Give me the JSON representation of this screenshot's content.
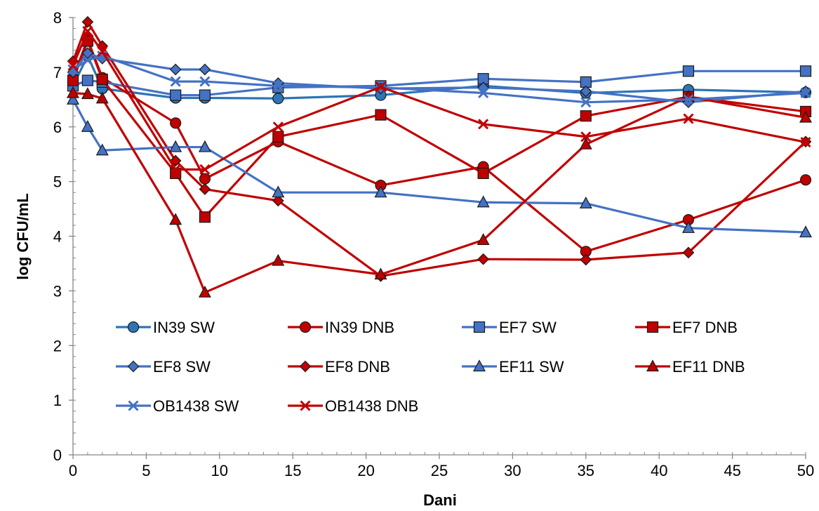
{
  "chart_data": {
    "type": "line",
    "title": "",
    "xlabel": "Dani",
    "ylabel": "log CFU/mL",
    "xlim": [
      0,
      50
    ],
    "ylim": [
      0,
      8
    ],
    "x_ticks": [
      0,
      5,
      10,
      15,
      20,
      25,
      30,
      35,
      40,
      45,
      50
    ],
    "y_ticks": [
      0,
      1,
      2,
      3,
      4,
      5,
      6,
      7,
      8
    ],
    "grid": false,
    "legend_position": "lower-middle, inside plot",
    "colors": {
      "SW": "#4472C4",
      "DNB": "#C00000",
      "IN39 SW": "#2E75B6"
    },
    "series": [
      {
        "name": "IN39 SW",
        "marker": "circle",
        "color": "#2E75B6",
        "x": [
          0,
          1,
          2,
          7,
          9,
          14,
          21,
          28,
          35,
          42,
          50
        ],
        "y": [
          6.75,
          7.3,
          6.7,
          6.53,
          6.53,
          6.52,
          6.58,
          6.75,
          6.62,
          6.68,
          6.63
        ]
      },
      {
        "name": "IN39 DNB",
        "marker": "circle",
        "color": "#C00000",
        "x": [
          0,
          1,
          2,
          7,
          9,
          14,
          21,
          28,
          35,
          42,
          50
        ],
        "y": [
          6.9,
          7.6,
          6.9,
          6.07,
          5.05,
          5.73,
          4.93,
          5.27,
          3.72,
          4.3,
          5.03
        ]
      },
      {
        "name": "EF7 SW",
        "marker": "square",
        "color": "#4472C4",
        "x": [
          0,
          1,
          2,
          7,
          9,
          14,
          21,
          28,
          35,
          42,
          50
        ],
        "y": [
          6.75,
          6.85,
          6.82,
          6.58,
          6.58,
          6.72,
          6.75,
          6.88,
          6.82,
          7.02,
          7.02
        ]
      },
      {
        "name": "EF7 DNB",
        "marker": "square",
        "color": "#C00000",
        "x": [
          0,
          1,
          2,
          7,
          9,
          14,
          21,
          28,
          35,
          42,
          50
        ],
        "y": [
          6.85,
          7.57,
          6.87,
          5.15,
          4.35,
          5.82,
          6.22,
          5.15,
          6.2,
          6.55,
          6.28
        ]
      },
      {
        "name": "EF8 SW",
        "marker": "diamond",
        "color": "#4472C4",
        "x": [
          0,
          1,
          2,
          7,
          9,
          14,
          21,
          28,
          35,
          42,
          50
        ],
        "y": [
          7.0,
          7.35,
          7.25,
          7.05,
          7.05,
          6.8,
          6.7,
          6.72,
          6.65,
          6.45,
          6.65
        ]
      },
      {
        "name": "EF8 DNB",
        "marker": "diamond",
        "color": "#C00000",
        "x": [
          0,
          1,
          2,
          7,
          9,
          14,
          21,
          28,
          35,
          42,
          50
        ],
        "y": [
          7.2,
          7.92,
          7.48,
          5.38,
          4.86,
          4.65,
          3.27,
          3.58,
          3.57,
          3.7,
          5.73
        ]
      },
      {
        "name": "EF11 SW",
        "marker": "triangle",
        "color": "#4472C4",
        "x": [
          0,
          1,
          2,
          7,
          9,
          14,
          21,
          28,
          35,
          42,
          50
        ],
        "y": [
          6.5,
          6.0,
          5.57,
          5.63,
          5.63,
          4.8,
          4.8,
          4.62,
          4.6,
          4.15,
          4.07
        ]
      },
      {
        "name": "EF11 DNB",
        "marker": "triangle",
        "color": "#C00000",
        "x": [
          0,
          1,
          2,
          7,
          9,
          14,
          21,
          28,
          35,
          42,
          50
        ],
        "y": [
          6.62,
          6.6,
          6.52,
          4.3,
          2.97,
          3.55,
          3.3,
          3.93,
          5.68,
          6.55,
          6.17
        ]
      },
      {
        "name": "OB1438 SW",
        "marker": "x",
        "color": "#4472C4",
        "x": [
          0,
          1,
          2,
          7,
          9,
          14,
          21,
          28,
          35,
          42,
          50
        ],
        "y": [
          7.05,
          7.22,
          7.3,
          6.83,
          6.83,
          6.75,
          6.72,
          6.62,
          6.45,
          6.5,
          6.62
        ]
      },
      {
        "name": "OB1438 DNB",
        "marker": "x",
        "color": "#C00000",
        "x": [
          0,
          1,
          2,
          7,
          9,
          14,
          21,
          28,
          35,
          42,
          50
        ],
        "y": [
          7.12,
          7.75,
          7.38,
          5.22,
          5.22,
          6.0,
          6.73,
          6.05,
          5.82,
          6.15,
          5.72
        ]
      }
    ]
  }
}
